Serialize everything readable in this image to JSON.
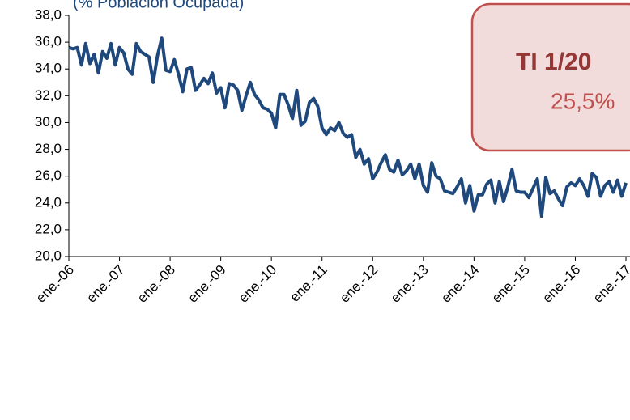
{
  "chart_data": {
    "type": "line",
    "title": "(% Población Ocupada)",
    "annotation": {
      "title": "TI 1/20",
      "text": "25,5%"
    },
    "categories": [
      "ene.-06",
      null,
      null,
      null,
      null,
      null,
      null,
      null,
      null,
      null,
      null,
      null,
      "ene.-07",
      null,
      null,
      null,
      null,
      null,
      null,
      null,
      null,
      null,
      null,
      null,
      "ene.-08",
      null,
      null,
      null,
      null,
      null,
      null,
      null,
      null,
      null,
      null,
      null,
      "ene.-09",
      null,
      null,
      null,
      null,
      null,
      null,
      null,
      null,
      null,
      null,
      null,
      "ene.-10",
      null,
      null,
      null,
      null,
      null,
      null,
      null,
      null,
      null,
      null,
      null,
      "ene.-11",
      null,
      null,
      null,
      null,
      null,
      null,
      null,
      null,
      null,
      null,
      null,
      "ene.-12",
      null,
      null,
      null,
      null,
      null,
      null,
      null,
      null,
      null,
      null,
      null,
      "ene.-13",
      null,
      null,
      null,
      null,
      null,
      null,
      null,
      null,
      null,
      null,
      null,
      "ene.-14",
      null,
      null,
      null,
      null,
      null,
      null,
      null,
      null,
      null,
      null,
      null,
      "ene.-15",
      null,
      null,
      null,
      null,
      null,
      null,
      null,
      null,
      null,
      null,
      null,
      "ene.-16",
      null,
      null,
      null,
      null,
      null,
      null,
      null,
      null,
      null,
      null,
      null,
      "ene.-17"
    ],
    "series": [
      {
        "color": "#1f497d",
        "values": [
          35.6,
          35.5,
          35.6,
          34.3,
          35.9,
          34.4,
          35.1,
          33.7,
          35.3,
          34.8,
          35.9,
          34.3,
          35.6,
          35.2,
          34.0,
          33.6,
          35.9,
          35.3,
          35.1,
          34.9,
          33.0,
          35.0,
          36.3,
          33.9,
          33.8,
          34.7,
          33.6,
          32.3,
          34.0,
          34.1,
          32.4,
          32.8,
          33.3,
          32.9,
          33.7,
          32.2,
          32.6,
          31.1,
          32.9,
          32.8,
          32.4,
          30.9,
          32.0,
          33.0,
          32.1,
          31.7,
          31.1,
          31.0,
          30.7,
          29.6,
          32.1,
          32.1,
          31.3,
          30.3,
          32.4,
          29.8,
          30.1,
          31.5,
          31.8,
          31.2,
          29.6,
          29.1,
          29.6,
          29.4,
          30.0,
          29.2,
          28.9,
          29.1,
          27.4,
          28.0,
          26.9,
          27.3,
          25.8,
          26.3,
          27.0,
          27.6,
          26.5,
          26.3,
          27.2,
          26.1,
          26.4,
          26.9,
          25.8,
          26.9,
          25.3,
          24.8,
          27.0,
          26.0,
          25.8,
          24.9,
          24.8,
          24.7,
          25.2,
          25.8,
          24.0,
          25.3,
          23.4,
          24.6,
          24.6,
          25.4,
          25.7,
          24.0,
          25.6,
          24.1,
          25.2,
          26.5,
          24.9,
          24.8,
          24.8,
          24.4,
          25.1,
          25.8,
          23.0,
          25.9,
          24.7,
          24.9,
          24.3,
          23.8,
          25.2,
          25.5,
          25.3,
          25.8,
          25.3,
          24.5,
          26.2,
          25.9,
          24.5,
          25.3,
          25.6,
          24.8,
          25.7,
          24.5,
          25.5
        ]
      }
    ],
    "ylim": [
      20,
      38
    ],
    "yticks": [
      {
        "value": 20,
        "label": "20,0"
      },
      {
        "value": 22,
        "label": "22,0"
      },
      {
        "value": 24,
        "label": "24,0"
      },
      {
        "value": 26,
        "label": "26,0"
      },
      {
        "value": 28,
        "label": "28,0"
      },
      {
        "value": 30,
        "label": "30,0"
      },
      {
        "value": 32,
        "label": "32,0"
      },
      {
        "value": 34,
        "label": "34,0"
      },
      {
        "value": 36,
        "label": "36,0"
      },
      {
        "value": 38,
        "label": "38,0"
      }
    ],
    "grid": false
  }
}
